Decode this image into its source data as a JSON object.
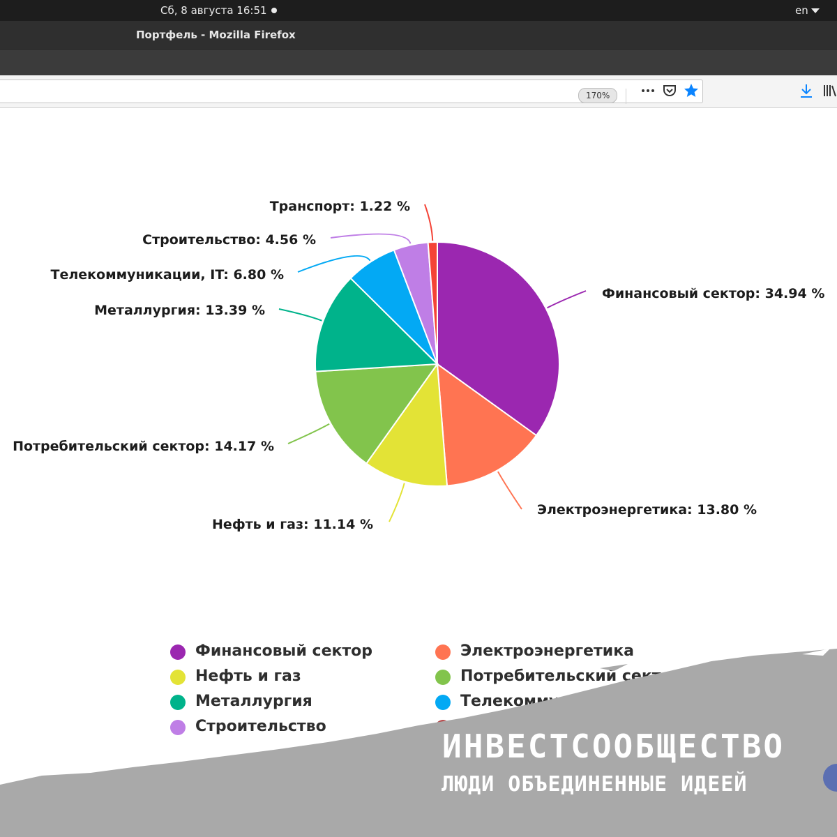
{
  "os": {
    "clock": "Сб, 8 августа  16:51",
    "lang": "en"
  },
  "window": {
    "title": "Портфель - Mozilla Firefox"
  },
  "toolbar": {
    "zoom": "170%"
  },
  "icons": {
    "menu": "more-dots-icon",
    "pocket": "pocket-icon",
    "bookmark": "star-icon",
    "download": "download-icon",
    "library": "library-icon"
  },
  "chart_data": {
    "type": "pie",
    "title": "",
    "slices": [
      {
        "name": "Финансовый сектор",
        "value": 34.94,
        "label": "Финансовый сектор: 34.94 %",
        "color": "#9b27b0"
      },
      {
        "name": "Электроэнергетика",
        "value": 13.8,
        "label": "Электроэнергетика: 13.80 %",
        "color": "#ff7452"
      },
      {
        "name": "Нефть и газ",
        "value": 11.14,
        "label": "Нефть и газ: 11.14 %",
        "color": "#e3e336"
      },
      {
        "name": "Потребительский сектор",
        "value": 14.17,
        "label": "Потребительский сектор: 14.17 %",
        "color": "#82c44c"
      },
      {
        "name": "Металлургия",
        "value": 13.39,
        "label": "Металлургия: 13.39 %",
        "color": "#00b38b"
      },
      {
        "name": "Телекоммуникации, IT",
        "value": 6.8,
        "label": "Телекоммуникации, IT: 6.80 %",
        "color": "#03a9f4"
      },
      {
        "name": "Строительство",
        "value": 4.56,
        "label": "Строительство: 4.56 %",
        "color": "#bf7ee6"
      },
      {
        "name": "Транспорт",
        "value": 1.22,
        "label": "Транспорт: 1.22 %",
        "color": "#f44336"
      }
    ],
    "legend": [
      {
        "label": "Финансовый сектор",
        "color": "#9b27b0"
      },
      {
        "label": "Электроэнергетика",
        "color": "#ff7452"
      },
      {
        "label": "Нефть и газ",
        "color": "#e3e336"
      },
      {
        "label": "Потребительский сектор",
        "color": "#82c44c"
      },
      {
        "label": "Металлургия",
        "color": "#00b38b"
      },
      {
        "label": "Телекоммуникации, IT",
        "color": "#03a9f4"
      },
      {
        "label": "Строительство",
        "color": "#bf7ee6"
      },
      {
        "label": "Транспорт",
        "color": "#b5484a"
      }
    ]
  },
  "watermark": {
    "title": "ИНВЕСТСООБЩЕСТВО",
    "subtitle": "ЛЮДИ ОБЪЕДИНЕННЫЕ ИДЕЕЙ"
  }
}
